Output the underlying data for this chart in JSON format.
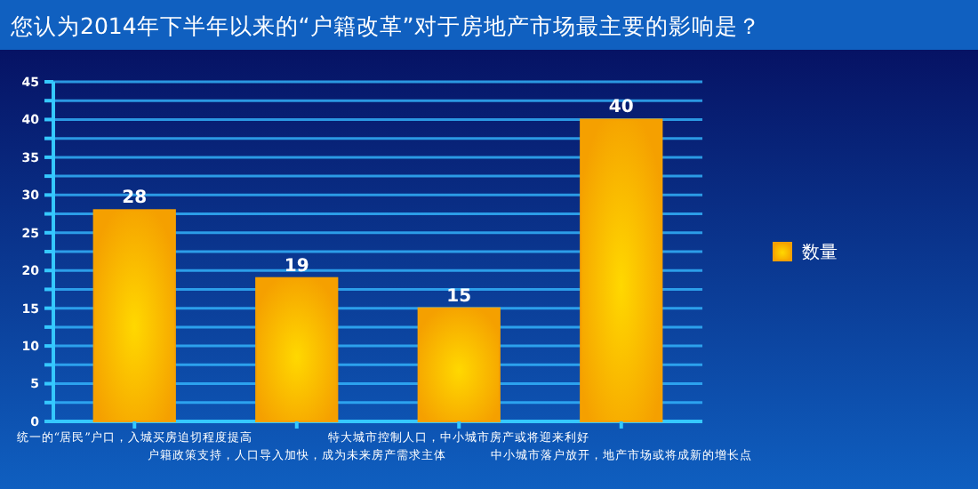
{
  "chart_data": {
    "type": "bar",
    "title": "您认为2014年下半年以来的“户籍改革”对于房地产市场最主要的影响是？",
    "categories": [
      "统一的“居民”户口，入城买房迫切程度提高",
      "户籍政策支持，人口导入加快，成为未来房产需求主体",
      "特大城市控制人口，中小城市房产或将迎来利好",
      "中小城市落户放开，地产市场或将成新的增长点"
    ],
    "series": [
      {
        "name": "数量",
        "color": "#f5a000",
        "values": [
          28,
          19,
          15,
          40
        ]
      }
    ],
    "ylim": [
      0,
      45
    ],
    "yticks": [
      0,
      {
        "value": 2.5,
        "label": null
      },
      5,
      {
        "value": 7.5,
        "label": null
      },
      10,
      {
        "value": 12.5,
        "label": null
      },
      15,
      {
        "value": 17.5,
        "label": null
      },
      20,
      {
        "value": 22.5,
        "label": null
      },
      25,
      {
        "value": 27.5,
        "label": null
      },
      30,
      {
        "value": 32.5,
        "label": null
      },
      35,
      {
        "value": 37.5,
        "label": null
      },
      40,
      {
        "value": 42.5,
        "label": null
      },
      45
    ],
    "grid": "y",
    "legend": "right",
    "data_labels": true
  }
}
